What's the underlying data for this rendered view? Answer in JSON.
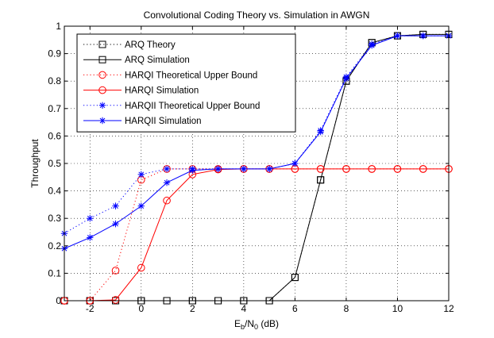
{
  "chart_data": {
    "type": "line",
    "title": "Convolutional Coding Theory vs. Simulation in AWGN",
    "xlabel": {
      "main": "E",
      "sub1": "b",
      "mid": "/N",
      "sub2": "0",
      "tail": " (dB)"
    },
    "ylabel": "Throughput",
    "xlim": [
      -3,
      12
    ],
    "ylim": [
      0,
      1
    ],
    "xticks": [
      -2,
      0,
      2,
      4,
      6,
      8,
      10,
      12
    ],
    "yticks": [
      0,
      0.1,
      0.2,
      0.3,
      0.4,
      0.5,
      0.6,
      0.7,
      0.8,
      0.9,
      1
    ],
    "xtick_labels": [
      "-2",
      "0",
      "2",
      "4",
      "6",
      "8",
      "10",
      "12"
    ],
    "ytick_labels": [
      "0",
      "0.1",
      "0.2",
      "0.3",
      "0.4",
      "0.5",
      "0.6",
      "0.7",
      "0.8",
      "0.9",
      "1"
    ],
    "grid": true,
    "legend_position": "top-left",
    "series": [
      {
        "name": "ARQ Theory",
        "color": "#000000",
        "line": "dotted",
        "marker": "square",
        "x": [
          -3,
          -2,
          -1,
          0,
          1,
          2,
          3,
          4,
          5,
          6,
          7,
          8,
          9,
          10,
          11,
          12
        ],
        "y": [
          0,
          0,
          0,
          0,
          0,
          0,
          0,
          0,
          0,
          0.085,
          0.44,
          0.8,
          0.94,
          0.965,
          0.97,
          0.97
        ]
      },
      {
        "name": "ARQ Simulation",
        "color": "#000000",
        "line": "solid",
        "marker": "square",
        "x": [
          -3,
          -2,
          -1,
          0,
          1,
          2,
          3,
          4,
          5,
          6,
          7,
          8,
          9,
          10,
          11,
          12
        ],
        "y": [
          0,
          0,
          0,
          0,
          0,
          0,
          0,
          0,
          0,
          0.085,
          0.44,
          0.8,
          0.94,
          0.965,
          0.97,
          0.97
        ]
      },
      {
        "name": "HARQI Theoretical Upper Bound",
        "color": "#ff0000",
        "line": "dotted",
        "marker": "circle",
        "x": [
          -3,
          -2,
          -1,
          0,
          1,
          2,
          3,
          4,
          5,
          6,
          7,
          8,
          9,
          10,
          11,
          12
        ],
        "y": [
          0,
          0,
          0.11,
          0.44,
          0.48,
          0.48,
          0.48,
          0.48,
          0.48,
          0.48,
          0.48,
          0.48,
          0.48,
          0.48,
          0.48,
          0.48
        ]
      },
      {
        "name": "HARQI Simulation",
        "color": "#ff0000",
        "line": "solid",
        "marker": "circle",
        "x": [
          -3,
          -2,
          -1,
          0,
          1,
          2,
          3,
          4,
          5,
          6,
          7,
          8,
          9,
          10,
          11,
          12
        ],
        "y": [
          0,
          0,
          0.003,
          0.12,
          0.365,
          0.46,
          0.478,
          0.48,
          0.48,
          0.48,
          0.48,
          0.48,
          0.48,
          0.48,
          0.48,
          0.48
        ]
      },
      {
        "name": "HARQII Theoretical Upper Bound",
        "color": "#0000ff",
        "line": "dotted",
        "marker": "star",
        "x": [
          -3,
          -2,
          -1,
          0,
          1,
          2,
          3,
          4,
          5,
          6,
          7,
          8,
          9,
          10,
          11,
          12
        ],
        "y": [
          0.245,
          0.3,
          0.345,
          0.46,
          0.48,
          0.48,
          0.48,
          0.48,
          0.48,
          0.5,
          0.62,
          0.815,
          0.935,
          0.965,
          0.965,
          0.965
        ]
      },
      {
        "name": "HARQII Simulation",
        "color": "#0000ff",
        "line": "solid",
        "marker": "star",
        "x": [
          -3,
          -2,
          -1,
          0,
          1,
          2,
          3,
          4,
          5,
          6,
          7,
          8,
          9,
          10,
          11,
          12
        ],
        "y": [
          0.19,
          0.23,
          0.28,
          0.345,
          0.43,
          0.475,
          0.48,
          0.48,
          0.48,
          0.5,
          0.615,
          0.81,
          0.93,
          0.965,
          0.965,
          0.965
        ]
      }
    ]
  }
}
